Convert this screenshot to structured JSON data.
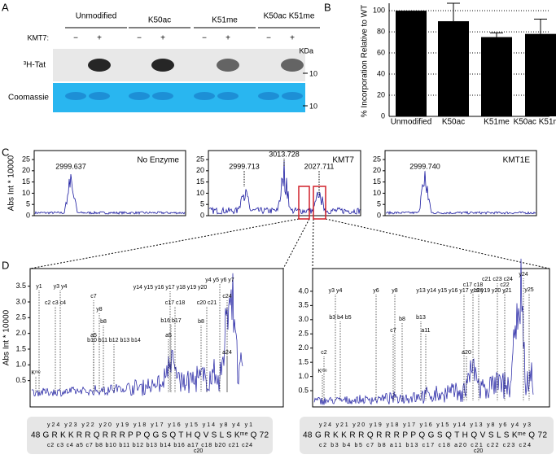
{
  "panel_a": {
    "label": "A",
    "kmt7_label": "KMT7:",
    "lanes": [
      "Unmodified",
      "K50ac",
      "K51me",
      "K50ac K51me"
    ],
    "states": [
      "−",
      "+"
    ],
    "rows": [
      "³H-Tat",
      "Coomassie"
    ],
    "kda": "KDa",
    "marker": "10"
  },
  "panel_b": {
    "label": "B",
    "chart_data": {
      "type": "bar",
      "y_label": "% Incorporation Relative to WT",
      "categories": [
        "Unmodified",
        "K50ac",
        "K51me",
        "K50ac K51me"
      ],
      "values": [
        100,
        90,
        75,
        78
      ],
      "errors": [
        0,
        17,
        4,
        14
      ],
      "color": "#000000",
      "ylim": [
        0,
        107
      ],
      "yticks": [
        0,
        20,
        40,
        60,
        80,
        100
      ],
      "grid": true
    }
  },
  "panel_c": {
    "label": "C",
    "y_label": "Abs Int * 10000",
    "ylim": [
      0,
      29
    ],
    "yticks": [
      0,
      5,
      10,
      15,
      20,
      25
    ],
    "spectra": [
      {
        "title": "No Enzyme",
        "peaks": [
          "2999.637"
        ]
      },
      {
        "title": "KMT7",
        "peaks": [
          "2999.713",
          "3013.728",
          "2027.711"
        ]
      },
      {
        "title": "KMT1E",
        "peaks": [
          "2999.740"
        ]
      }
    ]
  },
  "panel_d": {
    "label": "D",
    "y_label": "Abs Int * 10000",
    "left": {
      "ylim": [
        0,
        4.06
      ],
      "yticks": [
        0.5,
        {
          "value": 1,
          "label": "1.0"
        },
        1.5,
        {
          "value": 2,
          "label": "2.0"
        },
        2.5,
        {
          "value": 3,
          "label": "3.0"
        },
        3.5
      ],
      "ions": [
        "y1",
        "y3 y4",
        "c2 c3 c4",
        "a5",
        "c7",
        "y8",
        "b8",
        "b10 b11 b12 b13 b14",
        "a5",
        "b16 b17",
        "c17 c18",
        "c20 c21",
        "b8",
        "y14 y15 y16 y17 y18 y19 y20",
        "y4 y5 y6 y7",
        "c24",
        "a24",
        "Kᵐᵉ"
      ],
      "sequence": "48 G R K K R R Q R R R P P Q G S Q T H Q V S L S Kᵐᵉ Q 72",
      "top_ions": "y24 y23 y22   y20 y19 y18 y17 y16 y15 y14          y8          y4     y1",
      "bottom_ions": "c2  c3  c4  a5   c7  b8  b10 b11 b12 b13 b14  b16 a17 c18  b20 c21  c24",
      "bottom_ions2": "c20"
    },
    "right": {
      "ylim": [
        0,
        4.8
      ],
      "yticks": [
        0.5,
        {
          "value": 1,
          "label": "1.0"
        },
        1.5,
        {
          "value": 2,
          "label": "2.0"
        },
        2.5,
        {
          "value": 3,
          "label": "3.0"
        },
        3.5,
        {
          "value": 4,
          "label": "4.0"
        }
      ],
      "ions": [
        "y3 y4",
        "y6",
        "y8",
        "b3 b4 b5",
        "c2",
        "c7",
        "b8",
        "a11",
        "b13",
        "y13 y14 y15 y16 y17 y18 y19 y20 y21",
        "c17 c18",
        "c20",
        "c21 c23 c24",
        "c22",
        "y24",
        "y25",
        "a20",
        "Kᵐᵉ"
      ],
      "sequence": "48 G R K K R R Q R R R P P Q G S Q T H Q V S L S Kᵐᵉ Q 72",
      "top_ions": "y24     y21 y20 y19 y18 y17 y16 y15 y14 y13      y8    y6    y4 y3",
      "bottom_ions": "c2  b3   b4  b5  c7 b8   a11  b13   c17 c18  a20 c21 c22 c23  c24",
      "bottom_ions2": "c20"
    }
  }
}
